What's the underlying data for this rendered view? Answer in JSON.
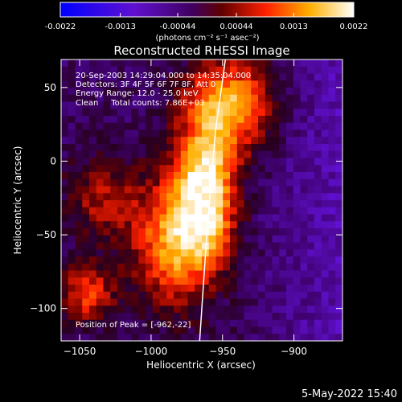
{
  "chart_data": {
    "type": "heatmap",
    "title": "Reconstructed RHESSI Image",
    "xlabel": "Heliocentric X (arcsec)",
    "ylabel": "Heliocentric Y (arcsec)",
    "xlim": [
      -1063,
      -866
    ],
    "ylim": [
      -122,
      69
    ],
    "x_ticks": [
      -1050,
      -1000,
      -950,
      -900
    ],
    "y_ticks": [
      50,
      0,
      -50,
      -100
    ],
    "colorbar": {
      "range": [
        -0.0022,
        0.0022
      ],
      "ticks": [
        "-0.0022",
        "-0.0013",
        "-0.00044",
        "0.00044",
        "0.0013",
        "0.0022"
      ],
      "units": "(photons cm⁻² s⁻¹ asec⁻²)",
      "colormap": "blue-purple-red-yellow-white"
    },
    "annotations": [
      "20-Sep-2003 14:29:04.000 to 14:35:04.000",
      "Detectors: 3F 4F 5F 6F 7F 8F, Att 0",
      "Energy Range: 12.0 - 25.0 keV",
      "Clean     Total counts: 7.86E+03"
    ],
    "peak_label": "Position of Peak = [-962,-22]",
    "peak": {
      "x": -962,
      "y": -22
    },
    "limb_line": [
      [
        -948,
        69
      ],
      [
        -955,
        20
      ],
      [
        -961,
        -50
      ],
      [
        -966,
        -122
      ]
    ],
    "sources": [
      {
        "x": -962,
        "y": -22,
        "sigma_x": 14,
        "sigma_y": 30,
        "amp": 1.0
      },
      {
        "x": -945,
        "y": 38,
        "sigma_x": 22,
        "sigma_y": 22,
        "amp": 0.75
      },
      {
        "x": -985,
        "y": -55,
        "sigma_x": 20,
        "sigma_y": 30,
        "amp": 0.7
      },
      {
        "x": -1045,
        "y": -90,
        "sigma_x": 14,
        "sigma_y": 14,
        "amp": 0.5
      },
      {
        "x": -1035,
        "y": -25,
        "sigma_x": 18,
        "sigma_y": 20,
        "amp": 0.35
      }
    ]
  },
  "footer": {
    "date": "5-May-2022 15:40"
  }
}
